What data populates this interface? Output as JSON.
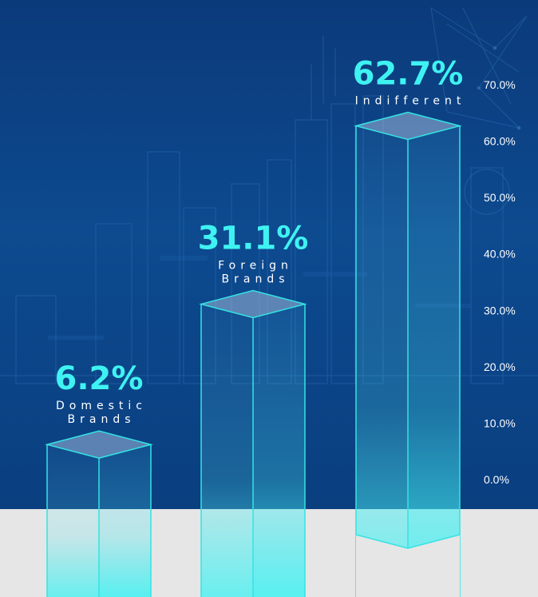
{
  "colors": {
    "background_top": "#0b3a7a",
    "background_bottom": "#0a3f80",
    "floor": "#e6e6e6",
    "accent": "#3ff2f2",
    "bar_edge": "#34e3e3"
  },
  "chart_data": {
    "type": "bar",
    "title": "",
    "xlabel": "",
    "ylabel": "",
    "categories": [
      [
        "Domestic",
        "Brands"
      ],
      [
        "Foreign",
        "Brands"
      ],
      [
        "Indifferent"
      ]
    ],
    "values": [
      6.2,
      31.1,
      62.7
    ],
    "value_labels": [
      "6.2%",
      "31.1%",
      "62.7%"
    ],
    "y_ticks": [
      "0.0%",
      "10.0%",
      "20.0%",
      "30.0%",
      "40.0%",
      "50.0%",
      "60.0%",
      "70.0%"
    ],
    "ylim": [
      0,
      70
    ],
    "grid": false,
    "legend": "none",
    "style": "3d-glass-prism"
  }
}
